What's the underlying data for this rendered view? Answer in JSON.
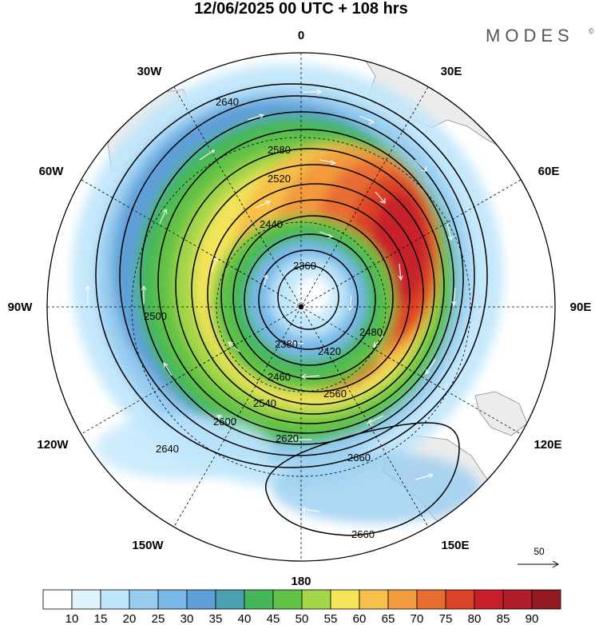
{
  "title": "12/06/2025  00 UTC  + 108 hrs",
  "brand": "MODES",
  "brand_mark": "©",
  "longitude_labels": [
    "0",
    "30E",
    "60E",
    "90E",
    "120E",
    "150E",
    "180",
    "150W",
    "120W",
    "90W",
    "60W",
    "30W"
  ],
  "height_contours": [
    "2360",
    "2380",
    "2420",
    "2440",
    "2460",
    "2480",
    "2500",
    "2520",
    "2540",
    "2560",
    "2580",
    "2600",
    "2620",
    "2640",
    "2660"
  ],
  "wind_reference": {
    "value": "50"
  },
  "colorbar": {
    "labels": [
      "10",
      "15",
      "20",
      "25",
      "30",
      "35",
      "40",
      "45",
      "50",
      "55",
      "60",
      "65",
      "70",
      "75",
      "80",
      "85",
      "90"
    ],
    "colors": [
      "#ffffff",
      "#dff2fd",
      "#bfe6fb",
      "#98cdf0",
      "#78b8e6",
      "#5f9fd8",
      "#4aa0b0",
      "#46b65a",
      "#62c245",
      "#a4d64a",
      "#f3e45a",
      "#f6c04a",
      "#f29a3e",
      "#e86d33",
      "#db4327",
      "#c7202a",
      "#b01c27",
      "#931a20"
    ]
  }
}
